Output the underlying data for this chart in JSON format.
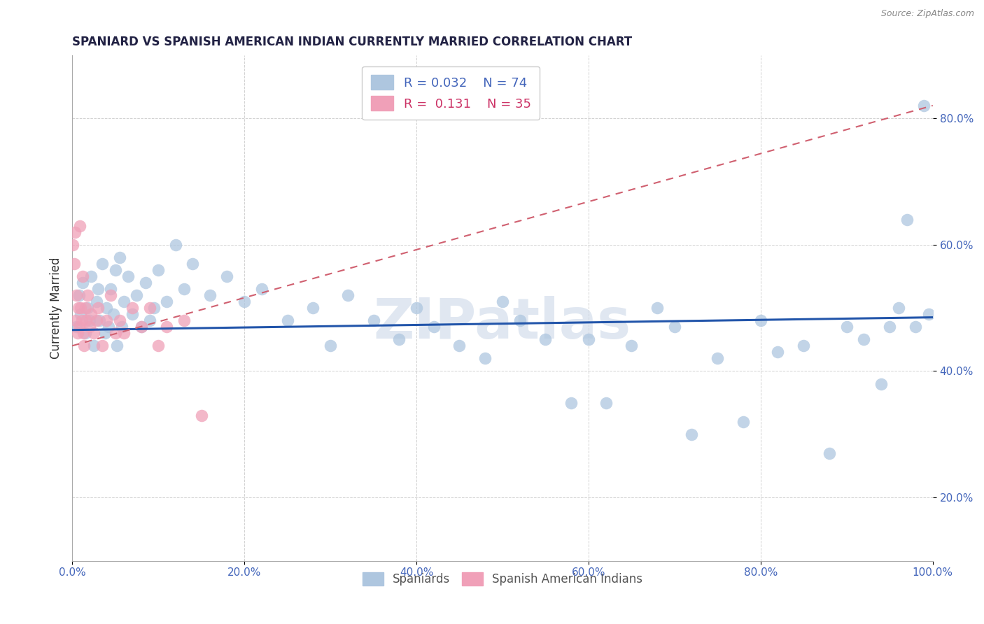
{
  "title": "SPANIARD VS SPANISH AMERICAN INDIAN CURRENTLY MARRIED CORRELATION CHART",
  "source": "Source: ZipAtlas.com",
  "ylabel": "Currently Married",
  "watermark": "ZIPatlas",
  "legend_r1": "R = 0.032",
  "legend_n1": "N = 74",
  "legend_r2": "R =  0.131",
  "legend_n2": "N = 35",
  "blue_color": "#aec6df",
  "pink_color": "#f0a0b8",
  "line_blue": "#2255aa",
  "line_pink": "#d06070",
  "background": "#ffffff",
  "title_color": "#222244",
  "axis_color": "#4466bb",
  "ylabel_color": "#333333",
  "grid_color": "#cccccc",
  "source_color": "#888888",
  "watermark_color": "#ccd8e8",
  "xlim": [
    0,
    100
  ],
  "ylim": [
    10,
    90
  ],
  "x_ticks": [
    0,
    20,
    40,
    60,
    80,
    100
  ],
  "x_labels": [
    "0.0%",
    "20.0%",
    "40.0%",
    "60.0%",
    "80.0%",
    "100.0%"
  ],
  "y_ticks": [
    20,
    40,
    60,
    80
  ],
  "y_labels": [
    "20.0%",
    "40.0%",
    "60.0%",
    "80.0%"
  ],
  "sp_x": [
    0.5,
    0.8,
    1.0,
    1.2,
    1.5,
    1.8,
    2.0,
    2.2,
    2.5,
    2.8,
    3.0,
    3.2,
    3.5,
    3.8,
    4.0,
    4.2,
    4.5,
    4.8,
    5.0,
    5.2,
    5.5,
    5.8,
    6.0,
    6.5,
    7.0,
    7.5,
    8.0,
    8.5,
    9.0,
    9.5,
    10.0,
    11.0,
    12.0,
    13.0,
    14.0,
    16.0,
    18.0,
    20.0,
    22.0,
    25.0,
    28.0,
    30.0,
    32.0,
    35.0,
    38.0,
    40.0,
    42.0,
    45.0,
    48.0,
    50.0,
    52.0,
    55.0,
    58.0,
    60.0,
    62.0,
    65.0,
    68.0,
    70.0,
    72.0,
    75.0,
    78.0,
    80.0,
    82.0,
    85.0,
    88.0,
    90.0,
    92.0,
    94.0,
    95.0,
    96.0,
    97.0,
    98.0,
    99.0,
    99.5
  ],
  "sp_y": [
    47,
    52,
    49,
    54,
    46,
    50,
    48,
    55,
    44,
    51,
    53,
    48,
    57,
    46,
    50,
    47,
    53,
    49,
    56,
    44,
    58,
    47,
    51,
    55,
    49,
    52,
    47,
    54,
    48,
    50,
    56,
    51,
    60,
    53,
    57,
    52,
    55,
    51,
    53,
    48,
    50,
    44,
    52,
    48,
    45,
    50,
    47,
    44,
    42,
    51,
    48,
    45,
    35,
    45,
    35,
    44,
    50,
    47,
    30,
    42,
    32,
    48,
    43,
    44,
    27,
    47,
    45,
    38,
    47,
    50,
    64,
    47,
    82,
    49
  ],
  "sai_x": [
    0.1,
    0.2,
    0.3,
    0.4,
    0.5,
    0.6,
    0.7,
    0.8,
    0.9,
    1.0,
    1.1,
    1.2,
    1.3,
    1.4,
    1.5,
    1.6,
    1.8,
    2.0,
    2.2,
    2.5,
    2.8,
    3.0,
    3.5,
    4.0,
    4.5,
    5.0,
    5.5,
    6.0,
    7.0,
    8.0,
    9.0,
    10.0,
    11.0,
    13.0,
    15.0
  ],
  "sai_y": [
    60,
    57,
    62,
    48,
    52,
    46,
    50,
    47,
    63,
    50,
    48,
    55,
    46,
    44,
    50,
    48,
    52,
    47,
    49,
    46,
    48,
    50,
    44,
    48,
    52,
    46,
    48,
    46,
    50,
    47,
    50,
    44,
    47,
    48,
    33
  ],
  "blue_line_x0": 0,
  "blue_line_x1": 100,
  "blue_line_y0": 46.5,
  "blue_line_y1": 48.5,
  "pink_line_x0": 0,
  "pink_line_x1": 100,
  "pink_line_y0": 44.0,
  "pink_line_y1": 82.0
}
